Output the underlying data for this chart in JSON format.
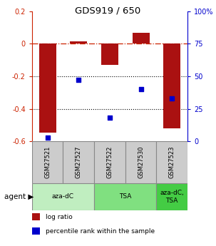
{
  "title": "GDS919 / 650",
  "samples": [
    "GSM27521",
    "GSM27527",
    "GSM27522",
    "GSM27530",
    "GSM27523"
  ],
  "log_ratios": [
    -0.545,
    0.015,
    -0.13,
    0.065,
    -0.52
  ],
  "percentile_ranks": [
    3,
    47,
    18,
    40,
    33
  ],
  "agents": [
    {
      "label": "aza-dC",
      "span": [
        0,
        2
      ],
      "color": "#c0eec0"
    },
    {
      "label": "TSA",
      "span": [
        2,
        4
      ],
      "color": "#80e080"
    },
    {
      "label": "aza-dC,\nTSA",
      "span": [
        4,
        5
      ],
      "color": "#44cc44"
    }
  ],
  "bar_color": "#aa1111",
  "dot_color": "#0000cc",
  "ylim_left": [
    -0.6,
    0.2
  ],
  "ylim_right": [
    0,
    100
  ],
  "yticks_left": [
    -0.6,
    -0.4,
    -0.2,
    0.0,
    0.2
  ],
  "ytick_labels_left": [
    "-0.6",
    "-0.4",
    "-0.2",
    "0",
    "0.2"
  ],
  "yticks_right": [
    0,
    25,
    50,
    75,
    100
  ],
  "ytick_labels_right": [
    "0",
    "25",
    "50",
    "75",
    "100%"
  ],
  "hline_y": 0.0,
  "dotted_lines": [
    -0.2,
    -0.4
  ],
  "bar_width": 0.55,
  "legend_items": [
    {
      "color": "#aa1111",
      "label": "log ratio"
    },
    {
      "color": "#0000cc",
      "label": "percentile rank within the sample"
    }
  ],
  "agent_label": "agent ▶",
  "left_tick_color": "#cc2200",
  "right_tick_color": "#0000cc",
  "sample_box_color": "#cccccc",
  "sample_box_edge": "#888888",
  "bg_color": "#ffffff"
}
